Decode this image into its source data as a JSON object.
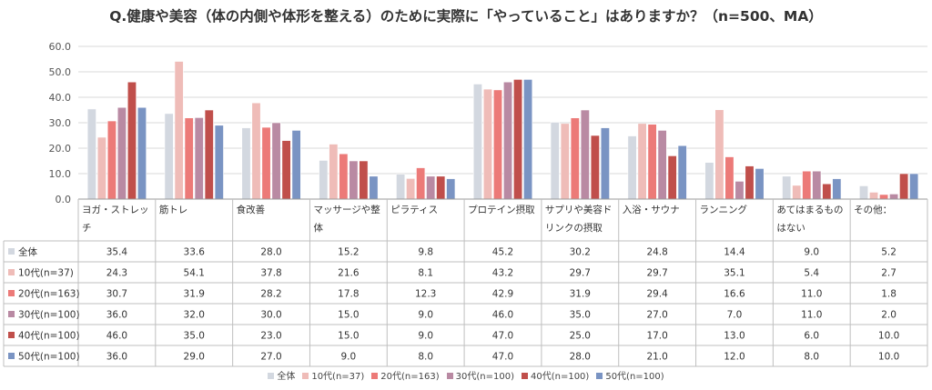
{
  "title": "Q.健康や美容（体の内側や体形を整える）のために実際に「やっていること」はありますか？（n=500、MA）",
  "chart_data": {
    "type": "bar",
    "title": "Q.健康や美容（体の内側や体形を整える）のために実際に「やっていること」はありますか？（n=500、MA）",
    "ylim": [
      0,
      60
    ],
    "yticks": [
      "0.0",
      "10.0",
      "20.0",
      "30.0",
      "40.0",
      "50.0",
      "60.0"
    ],
    "grid": true,
    "legend_position": "bottom",
    "categories": [
      [
        "ヨガ・ストレッ",
        "チ"
      ],
      [
        "筋トレ"
      ],
      [
        "食改善"
      ],
      [
        "マッサージや整",
        "体"
      ],
      [
        "ピラティス"
      ],
      [
        "プロテイン摂取"
      ],
      [
        "サプリや美容ド",
        "リンクの摂取"
      ],
      [
        "入浴・サウナ"
      ],
      [
        "ランニング"
      ],
      [
        "あてはまるもの",
        "はない"
      ],
      [
        "その他："
      ]
    ],
    "series": [
      {
        "name": "全体",
        "color": "#d3d8e0",
        "values": [
          35.4,
          33.6,
          28.0,
          15.2,
          9.8,
          45.2,
          30.2,
          24.8,
          14.4,
          9.0,
          5.2
        ],
        "labels": [
          "35.4",
          "33.6",
          "28.0",
          "15.2",
          "9.8",
          "45.2",
          "30.2",
          "24.8",
          "14.4",
          "9.0",
          "5.2"
        ]
      },
      {
        "name": "10代(n=37)",
        "color": "#efbcb8",
        "values": [
          24.3,
          54.1,
          37.8,
          21.6,
          8.1,
          43.2,
          29.7,
          29.7,
          35.1,
          5.4,
          2.7
        ],
        "labels": [
          "24.3",
          "54.1",
          "37.8",
          "21.6",
          "8.1",
          "43.2",
          "29.7",
          "29.7",
          "35.1",
          "5.4",
          "2.7"
        ]
      },
      {
        "name": "20代(n=163)",
        "color": "#ec7a78",
        "values": [
          30.7,
          31.9,
          28.2,
          17.8,
          12.3,
          42.9,
          31.9,
          29.4,
          16.6,
          11.0,
          1.8
        ],
        "labels": [
          "30.7",
          "31.9",
          "28.2",
          "17.8",
          "12.3",
          "42.9",
          "31.9",
          "29.4",
          "16.6",
          "11.0",
          "1.8"
        ]
      },
      {
        "name": "30代(n=100)",
        "color": "#b98aa3",
        "values": [
          36.0,
          32.0,
          30.0,
          15.0,
          9.0,
          46.0,
          35.0,
          27.0,
          7.0,
          11.0,
          2.0
        ],
        "labels": [
          "36.0",
          "32.0",
          "30.0",
          "15.0",
          "9.0",
          "46.0",
          "35.0",
          "27.0",
          "7.0",
          "11.0",
          "2.0"
        ]
      },
      {
        "name": "40代(n=100)",
        "color": "#c04f4b",
        "values": [
          46.0,
          35.0,
          23.0,
          15.0,
          9.0,
          47.0,
          25.0,
          17.0,
          13.0,
          6.0,
          10.0
        ],
        "labels": [
          "46.0",
          "35.0",
          "23.0",
          "15.0",
          "9.0",
          "47.0",
          "25.0",
          "17.0",
          "13.0",
          "6.0",
          "10.0"
        ]
      },
      {
        "name": "50代(n=100)",
        "color": "#7a94c3",
        "values": [
          36.0,
          29.0,
          27.0,
          9.0,
          8.0,
          47.0,
          28.0,
          21.0,
          12.0,
          8.0,
          10.0
        ],
        "labels": [
          "36.0",
          "29.0",
          "27.0",
          "9.0",
          "8.0",
          "47.0",
          "28.0",
          "21.0",
          "12.0",
          "8.0",
          "10.0"
        ]
      }
    ]
  }
}
